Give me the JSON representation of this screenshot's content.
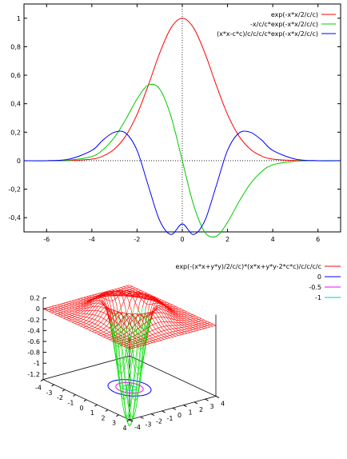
{
  "chart_data": [
    {
      "type": "line",
      "title": "",
      "xlabel": "",
      "ylabel": "",
      "xlim": [
        -7,
        7
      ],
      "ylim": [
        -0.5,
        1.1
      ],
      "xticks": [
        -6,
        -4,
        -2,
        0,
        2,
        4,
        6
      ],
      "yticks": [
        -0.4,
        -0.2,
        0,
        0.2,
        0.4,
        0.6,
        0.8,
        1
      ],
      "xtick_labels": [
        "-6",
        "-4",
        "-2",
        "0",
        "2",
        "4",
        "6"
      ],
      "ytick_labels": [
        "-0,4",
        "-0,2",
        "0",
        "0,2",
        "0,4",
        "0,6",
        "0,8",
        "1"
      ],
      "zero_axes_dotted": true,
      "legend_placement": "top-right",
      "x": [
        -7,
        -6,
        -5,
        -4,
        -3.5,
        -3,
        -2.5,
        -2,
        -1.5,
        -1,
        -0.5,
        0,
        0.5,
        1,
        1.5,
        2,
        2.5,
        3,
        3.5,
        4,
        5,
        6,
        7
      ],
      "series": [
        {
          "name": "exp(-x*x/2/c/c)",
          "color": "#ff0000",
          "values": [
            0,
            0,
            0.001,
            0.011,
            0.033,
            0.082,
            0.174,
            0.325,
            0.531,
            0.755,
            0.932,
            1,
            0.932,
            0.755,
            0.531,
            0.325,
            0.174,
            0.082,
            0.033,
            0.011,
            0.001,
            0,
            0
          ]
        },
        {
          "name": "-x/c/c*exp(-x*x/2/c/c)",
          "color": "#00cc00",
          "values": [
            0,
            0,
            0.004,
            0.029,
            0.078,
            0.164,
            0.29,
            0.433,
            0.531,
            0.503,
            0.311,
            0,
            -0.311,
            -0.503,
            -0.531,
            -0.433,
            -0.29,
            -0.164,
            -0.078,
            -0.029,
            -0.004,
            0,
            0
          ]
        },
        {
          "name": "(x*x-c*c)/c/c/c/c*exp(-x*x/2/c/c)",
          "color": "#0000ff",
          "values": [
            0,
            0,
            0.011,
            0.072,
            0.146,
            0.2,
            0.193,
            0.072,
            -0.177,
            -0.42,
            -0.518,
            -0.444,
            -0.518,
            -0.42,
            -0.177,
            0.072,
            0.193,
            0.2,
            0.146,
            0.072,
            0.011,
            0,
            0
          ]
        }
      ]
    },
    {
      "type": "surface",
      "title": "",
      "function": "exp(-(x*x+y*y)/2/c/c)*(x*x+y*y-2*c*c)/c/c/c/c",
      "xlim": [
        -4,
        4
      ],
      "ylim": [
        -4,
        4
      ],
      "zlim": [
        -1.3,
        0.2
      ],
      "xticks": [
        -4,
        -3,
        -2,
        -1,
        0,
        1,
        2,
        3,
        4
      ],
      "yticks": [
        -4,
        -3,
        -2,
        -1,
        0,
        1,
        2,
        3,
        4
      ],
      "zticks": [
        0.2,
        0,
        -0.2,
        -0.4,
        -0.6,
        -0.8,
        -1,
        -1.2
      ],
      "xtick_labels": [
        "-4",
        "-3",
        "-2",
        "-1",
        "0",
        "1",
        "2",
        "3",
        "4"
      ],
      "ytick_labels": [
        "-4",
        "-3",
        "-2",
        "-1",
        "0",
        "1",
        "2",
        "3",
        "4"
      ],
      "ztick_labels": [
        "0.2",
        "0",
        "-0.2",
        "-0.4",
        "-0.6",
        "-0.8",
        "-1",
        "-1.2"
      ],
      "legend_placement": "top-right",
      "series": [
        {
          "name": "exp(-(x*x+y*y)/2/c/c)*(x*x+y*y-2*c*c)/c/c/c/c",
          "color": "#ff0000"
        },
        {
          "name": "0",
          "color": "#0000ff",
          "contour_radius": 1.414
        },
        {
          "name": "-0.5",
          "color": "#ff00ff",
          "contour_radius": 0.9
        },
        {
          "name": "-1",
          "color": "#00cccc",
          "contour_radius": 0.44
        }
      ]
    }
  ]
}
